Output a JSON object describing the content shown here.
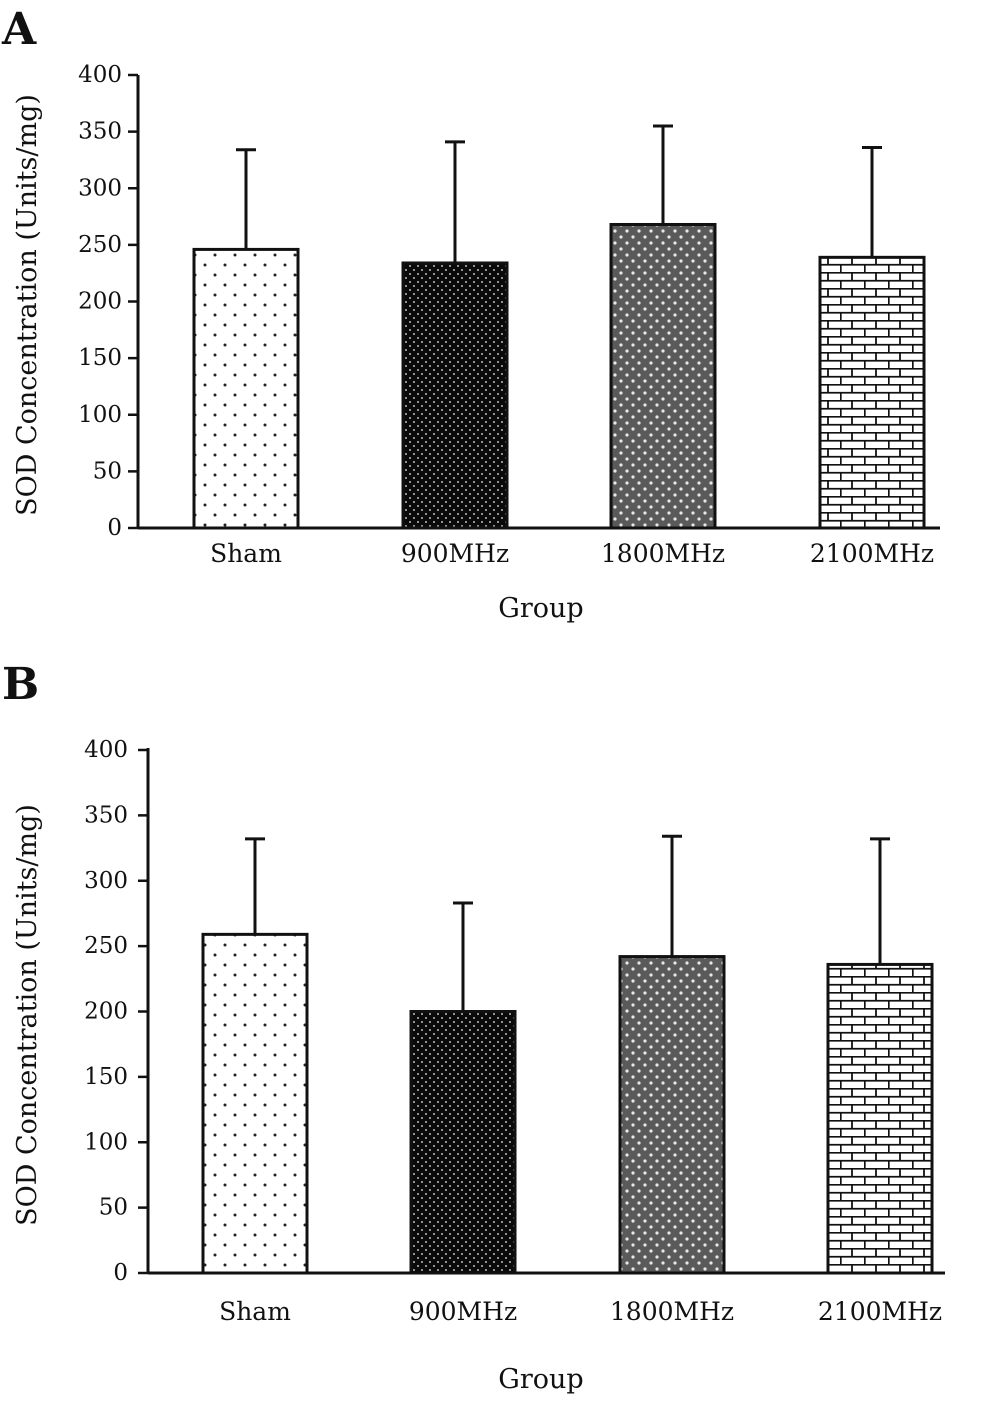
{
  "chart_data": [
    {
      "panel": "A",
      "type": "bar",
      "categories": [
        "Sham",
        "900MHz",
        "1800MHz",
        "2100MHz"
      ],
      "values": [
        246,
        234,
        268,
        239
      ],
      "error_upper": [
        334,
        341,
        355,
        336
      ],
      "patterns": [
        "sparse-dots",
        "dense-dots-dark",
        "diamond-dots-gray",
        "brick"
      ],
      "xlabel": "Group",
      "ylabel": "SOD Concentration (Units/mg)",
      "ylim": [
        0,
        400
      ],
      "yticks": [
        "0",
        "50",
        "100",
        "150",
        "200",
        "250",
        "300",
        "350",
        "400"
      ]
    },
    {
      "panel": "B",
      "type": "bar",
      "categories": [
        "Sham",
        "900MHz",
        "1800MHz",
        "2100MHz"
      ],
      "values": [
        259,
        200,
        242,
        236
      ],
      "error_upper": [
        332,
        283,
        334,
        332
      ],
      "patterns": [
        "sparse-dots",
        "dense-dots-dark",
        "diamond-dots-gray",
        "brick"
      ],
      "xlabel": "Group",
      "ylabel": "SOD Concentration (Units/mg)",
      "ylim": [
        0,
        400
      ],
      "yticks": [
        "0",
        "50",
        "100",
        "150",
        "200",
        "250",
        "300",
        "350",
        "400"
      ]
    }
  ]
}
